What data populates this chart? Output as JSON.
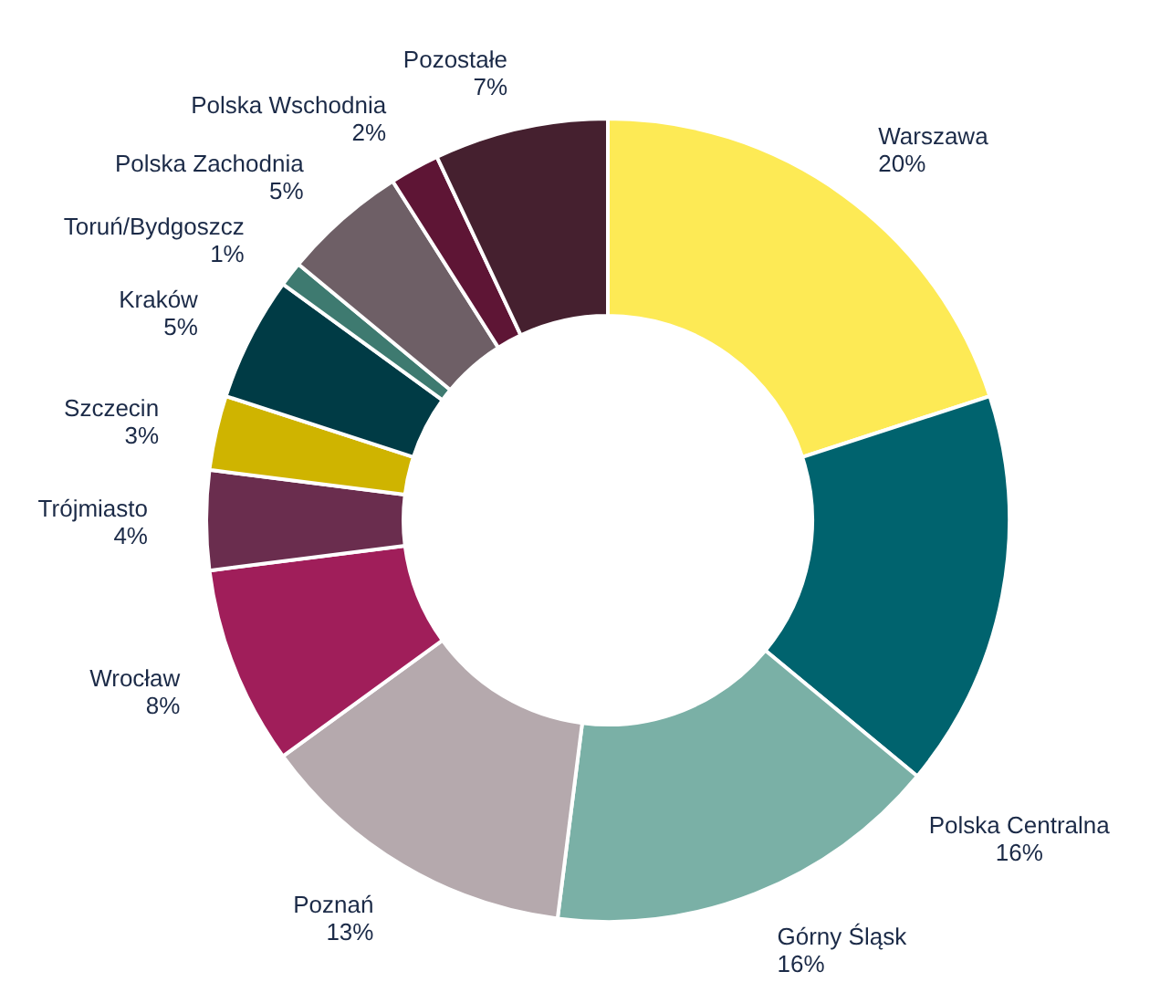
{
  "chart_data": {
    "type": "donut",
    "categories": [
      "Warszawa",
      "Polska Centralna",
      "Górny Śląsk",
      "Poznań",
      "Wrocław",
      "Trójmiasto",
      "Szczecin",
      "Kraków",
      "Toruń/Bydgoszcz",
      "Polska Zachodnia",
      "Polska Wschodnia",
      "Pozostałe"
    ],
    "values": [
      20,
      16,
      16,
      13,
      8,
      4,
      3,
      5,
      1,
      5,
      2,
      7
    ],
    "colors": [
      "#fdea55",
      "#00636e",
      "#7ab0a6",
      "#b5a9ad",
      "#a01e5a",
      "#6a2d4e",
      "#cfb400",
      "#003b45",
      "#3e7a70",
      "#6e5f66",
      "#5e1535",
      "#45202f"
    ],
    "value_labels": [
      "20%",
      "16%",
      "16%",
      "13%",
      "8%",
      "4%",
      "3%",
      "5%",
      "1%",
      "5%",
      "2%",
      "7%"
    ],
    "legend": false
  }
}
